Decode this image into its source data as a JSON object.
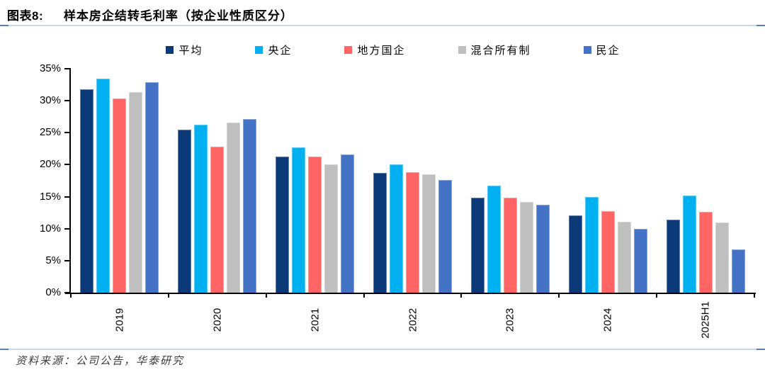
{
  "header": {
    "figure_label": "图表8:",
    "title": "样本房企结转毛利率（按企业性质区分）"
  },
  "footer": {
    "source": "资料来源：公司公告，华泰研究"
  },
  "colors": {
    "divider_line": "#c7d9ea",
    "divider_dash": "#5b7fae",
    "axis": "#000000"
  },
  "chart_data": {
    "type": "bar",
    "title": "样本房企结转毛利率（按企业性质区分）",
    "categories": [
      "2019",
      "2020",
      "2021",
      "2022",
      "2023",
      "2024",
      "2025H1"
    ],
    "series": [
      {
        "name": "平均",
        "color": "#0c3a78",
        "values": [
          31.8,
          25.5,
          21.3,
          18.7,
          14.8,
          12.1,
          11.4
        ]
      },
      {
        "name": "央企",
        "color": "#00b0f0",
        "values": [
          33.4,
          26.2,
          22.7,
          20.1,
          16.7,
          15.0,
          15.2
        ]
      },
      {
        "name": "地方国企",
        "color": "#ff6565",
        "values": [
          30.4,
          22.8,
          21.3,
          18.8,
          14.8,
          12.7,
          12.6
        ]
      },
      {
        "name": "混合所有制",
        "color": "#bfbfbf",
        "values": [
          31.3,
          26.6,
          20.0,
          18.5,
          14.2,
          11.1,
          11.0
        ]
      },
      {
        "name": "民企",
        "color": "#4472c4",
        "values": [
          32.9,
          27.1,
          21.6,
          17.6,
          13.7,
          10.0,
          6.8
        ]
      }
    ],
    "xlabel": "",
    "ylabel": "",
    "ylim": [
      0,
      35
    ],
    "ytick_step": 5,
    "yticks": [
      "35%",
      "30%",
      "25%",
      "20%",
      "15%",
      "10%",
      "5%",
      "0%"
    ],
    "legend_position": "top",
    "grid": false
  }
}
